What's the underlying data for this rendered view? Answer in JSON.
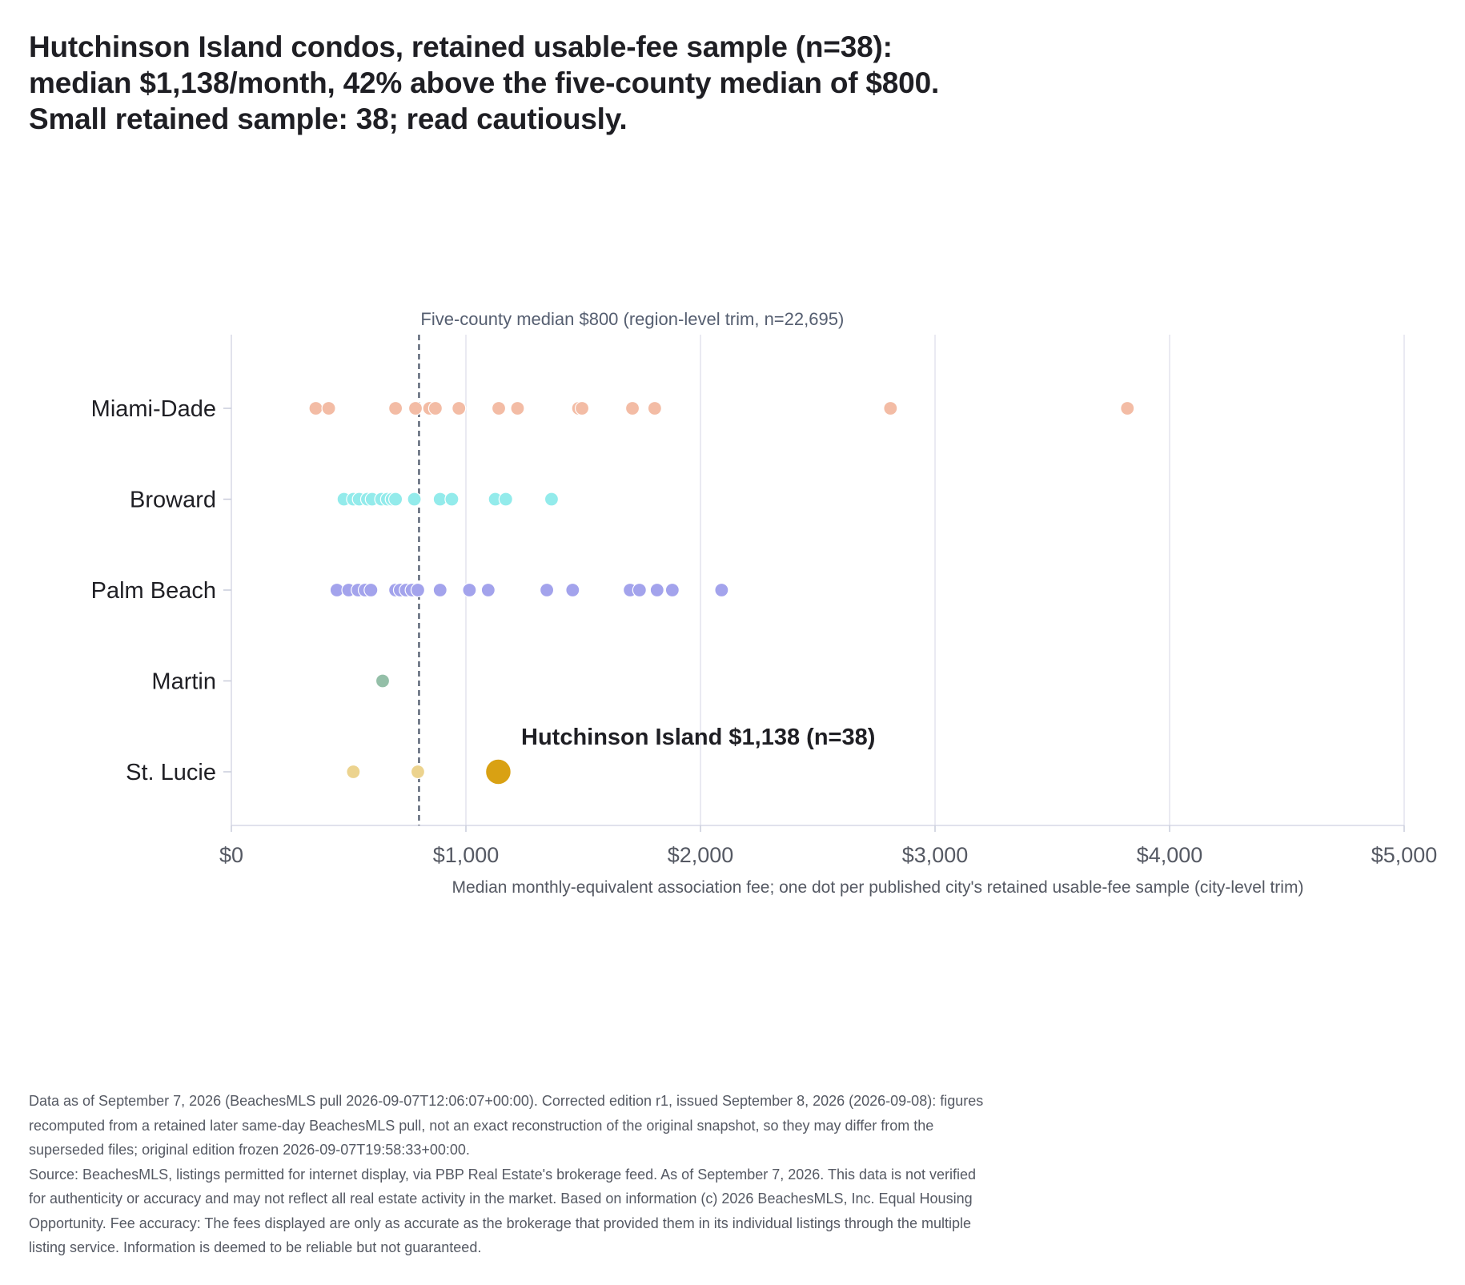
{
  "title_lines": [
    "Hutchinson Island condos, retained usable-fee sample (n=38):",
    "median $1,138/month, 42% above the five-county median of $800.",
    "Small retained sample: 38; read cautiously."
  ],
  "chart_data": {
    "type": "scatter",
    "xlabel": "Median monthly-equivalent association fee; one dot per published city's retained usable-fee sample (city-level trim)",
    "xlim": [
      0,
      5000
    ],
    "xticks": [
      0,
      1000,
      2000,
      3000,
      4000,
      5000
    ],
    "xtick_labels": [
      "$0",
      "$1,000",
      "$2,000",
      "$3,000",
      "$4,000",
      "$5,000"
    ],
    "grid": "vertical",
    "categories": [
      "Miami-Dade",
      "Broward",
      "Palm Beach",
      "Martin",
      "St. Lucie"
    ],
    "series": [
      {
        "category": "Miami-Dade",
        "color": "#f3bca5",
        "values": [
          360,
          415,
          700,
          785,
          845,
          870,
          970,
          1140,
          1220,
          1480,
          1495,
          1710,
          1805,
          2810,
          3820
        ]
      },
      {
        "category": "Broward",
        "color": "#93ebeb",
        "values": [
          480,
          520,
          545,
          580,
          600,
          640,
          665,
          685,
          700,
          780,
          890,
          940,
          1125,
          1170,
          1365
        ]
      },
      {
        "category": "Palm Beach",
        "color": "#a3a3ec",
        "values": [
          450,
          500,
          540,
          570,
          595,
          700,
          720,
          745,
          770,
          795,
          890,
          1015,
          1095,
          1345,
          1455,
          1700,
          1740,
          1815,
          1880,
          2090
        ]
      },
      {
        "category": "Martin",
        "color": "#94bfa8",
        "values": [
          645
        ]
      },
      {
        "category": "St. Lucie",
        "color": "#ecd38e",
        "values": [
          520,
          795
        ]
      }
    ],
    "highlight": {
      "category": "St. Lucie",
      "value": 1138,
      "color": "#d9a113",
      "label": "Hutchinson Island $1,138 (n=38)"
    },
    "reference_line": {
      "value": 800,
      "label": "Five-county median $800 (region-level trim, n=22,695)",
      "color": "#4a5568"
    }
  },
  "footer": {
    "lines": [
      "Data as of September 7, 2026 (BeachesMLS pull 2026-09-07T12:06:07+00:00). Corrected edition r1, issued September 8, 2026 (2026-09-08): figures",
      "recomputed from a retained later same-day BeachesMLS pull, not an exact reconstruction of the original snapshot, so they may differ from the",
      "superseded files; original edition frozen 2026-09-07T19:58:33+00:00.",
      "Source: BeachesMLS, listings permitted for internet display, via PBP Real Estate's brokerage feed. As of September 7, 2026. This data is not verified",
      "for authenticity or accuracy and may not reflect all real estate activity in the market. Based on information (c) 2026 BeachesMLS, Inc. Equal Housing",
      "Opportunity. Fee accuracy: The fees displayed are only as accurate as the brokerage that provided them in its individual listings through the multiple",
      "listing service. Information is deemed to be reliable but not guaranteed."
    ]
  }
}
